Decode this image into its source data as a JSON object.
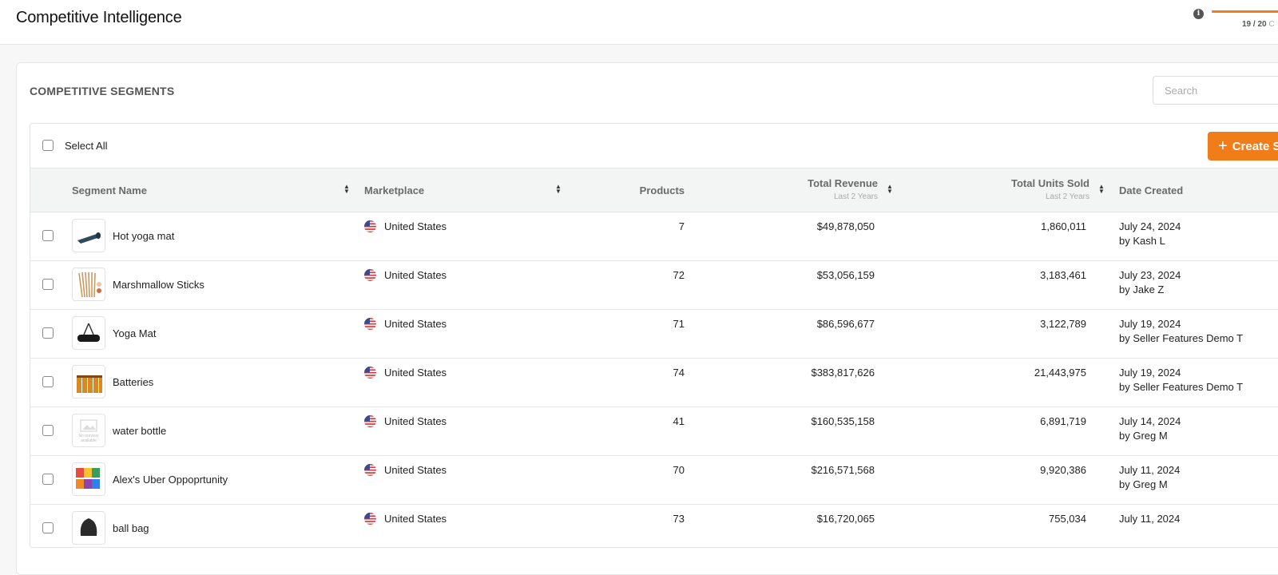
{
  "header": {
    "title": "Competitive Intelligence",
    "usage_text": "19 / 20",
    "usage_suffix": "C",
    "usage_fraction": 0.95
  },
  "section": {
    "title": "COMPETITIVE SEGMENTS"
  },
  "search": {
    "placeholder": "Search",
    "value": ""
  },
  "toolbar": {
    "select_all_label": "Select All",
    "create_label": "Create S"
  },
  "columns": {
    "segment_name": "Segment Name",
    "marketplace": "Marketplace",
    "products": "Products",
    "total_revenue": "Total Revenue",
    "total_revenue_sub": "Last 2 Years",
    "total_units": "Total Units Sold",
    "total_units_sub": "Last 2 Years",
    "date_created": "Date Created"
  },
  "colors": {
    "accent": "#f07c1a"
  },
  "rows": [
    {
      "name": "Hot yoga mat",
      "marketplace": "United States",
      "products": "7",
      "revenue": "$49,878,050",
      "units": "1,860,011",
      "date": "July 24, 2024",
      "creator": "by Kash L",
      "thumb": "rolled-mat"
    },
    {
      "name": "Marshmallow Sticks",
      "marketplace": "United States",
      "products": "72",
      "revenue": "$53,056,159",
      "units": "3,183,461",
      "date": "July 23, 2024",
      "creator": "by Jake Z",
      "thumb": "sticks"
    },
    {
      "name": "Yoga Mat",
      "marketplace": "United States",
      "products": "71",
      "revenue": "$86,596,677",
      "units": "3,122,789",
      "date": "July 19, 2024",
      "creator": "by Seller Features Demo T",
      "thumb": "black-mat"
    },
    {
      "name": "Batteries",
      "marketplace": "United States",
      "products": "74",
      "revenue": "$383,817,626",
      "units": "21,443,975",
      "date": "July 19, 2024",
      "creator": "by Seller Features Demo T",
      "thumb": "batteries"
    },
    {
      "name": "water bottle",
      "marketplace": "United States",
      "products": "41",
      "revenue": "$160,535,158",
      "units": "6,891,719",
      "date": "July 14, 2024",
      "creator": "by Greg M",
      "thumb": "placeholder",
      "thumb_text": "No preview available"
    },
    {
      "name": "Alex's Uber Oppoprtunity",
      "marketplace": "United States",
      "products": "70",
      "revenue": "$216,571,568",
      "units": "9,920,386",
      "date": "July 11, 2024",
      "creator": "by Greg M",
      "thumb": "colorful-box"
    },
    {
      "name": "ball bag",
      "marketplace": "United States",
      "products": "73",
      "revenue": "$16,720,065",
      "units": "755,034",
      "date": "July 11, 2024",
      "creator": "",
      "thumb": "bag"
    }
  ]
}
